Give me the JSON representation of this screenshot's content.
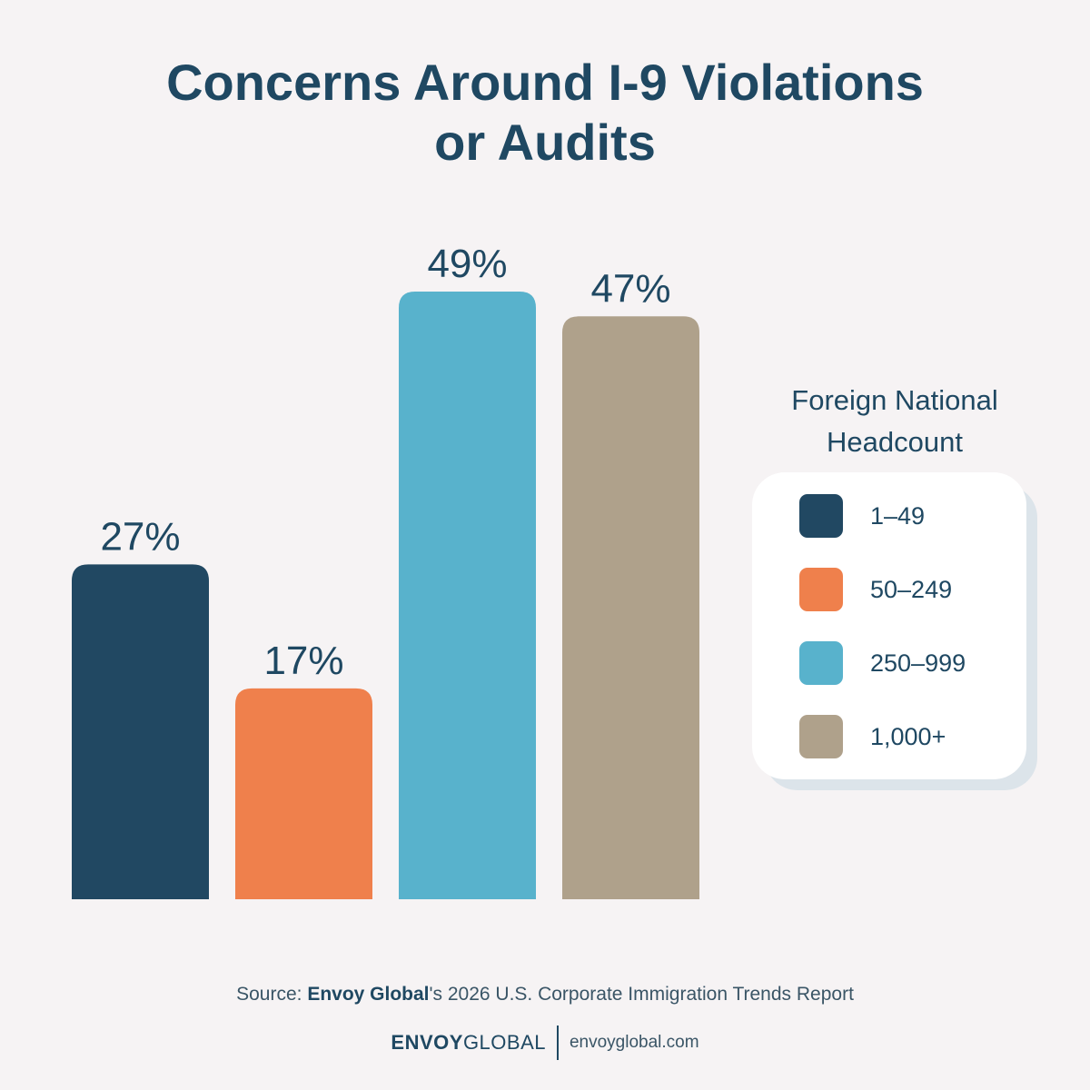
{
  "chart_data": {
    "type": "bar",
    "title_lines": [
      "Concerns Around I-9 Violations",
      "or Audits"
    ],
    "categories": [
      "1–49",
      "50–249",
      "250–999",
      "1,000+"
    ],
    "values": [
      27,
      17,
      49,
      47
    ],
    "value_labels": [
      "27%",
      "17%",
      "49%",
      "47%"
    ],
    "colors": [
      "#214862",
      "#ef804c",
      "#58b2cc",
      "#afa18b"
    ],
    "legend_title_lines": [
      "Foreign National",
      "Headcount"
    ],
    "legend_position": "right",
    "grid": false,
    "ylim": [
      0,
      49
    ]
  },
  "source": {
    "prefix": "Source: ",
    "brand": "Envoy Global",
    "suffix": "'s 2026 U.S. Corporate Immigration Trends Report"
  },
  "footer": {
    "logo_bold": "ENVOY",
    "logo_light": "GLOBAL",
    "website": "envoyglobal.com"
  }
}
